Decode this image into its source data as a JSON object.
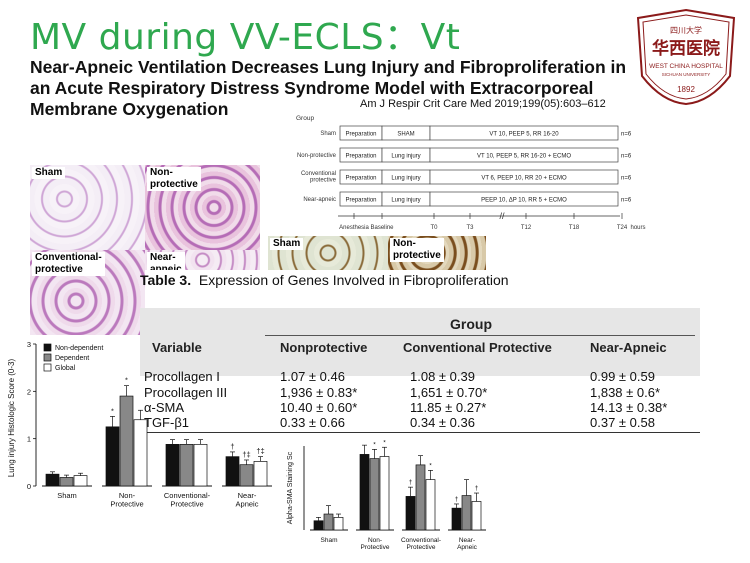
{
  "slide_title": "MV during VV-ECLS：Vt",
  "paper_title": "Near-Apneic Ventilation Decreases Lung Injury and Fibroproliferation in an Acute Respiratory Distress Syndrome Model with Extracorporeal Membrane Oxygenation",
  "citation": "Am J Respir Crit Care Med 2019;199(05):603–612",
  "logo": {
    "text_cn": "华西医院",
    "text_en": "WEST CHINA HOSPITAL",
    "subtitle": "SICHUAN UNIVERSITY",
    "year": "1892",
    "small_cn": "四川大学"
  },
  "histology_panels": {
    "sham": "Sham",
    "nonprotective": "Non-\nprotective",
    "conventional": "Conventional-\nprotective",
    "near_apneic": "Near-\napneic"
  },
  "alpha_sma_panels": {
    "sham": "Sham",
    "nonprotective": "Non-\nprotective"
  },
  "protocol": {
    "group_header": "Group",
    "rows": [
      {
        "group": "Sham",
        "prep": "Preparation",
        "injury": "SHAM",
        "vent": "VT 10, PEEP 5, RR 16-20",
        "n": "n=6"
      },
      {
        "group": "Non-protective",
        "prep": "Preparation",
        "injury": "Lung injury",
        "vent": "VT 10, PEEP 5, RR 16-20 + ECMO",
        "n": "n=6"
      },
      {
        "group": "Conventional protective",
        "prep": "Preparation",
        "injury": "Lung injury",
        "vent": "VT 6, PEEP 10, RR 20 + ECMO",
        "n": "n=6"
      },
      {
        "group": "Near-apneic",
        "prep": "Preparation",
        "injury": "Lung injury",
        "vent": "PEEP 10, ΔP 10, RR 5 + ECMO",
        "n": "n=6"
      }
    ],
    "timeline": [
      "Anesthesia",
      "Baseline",
      "T0",
      "T3",
      "T12",
      "T18",
      "T24",
      "hours"
    ]
  },
  "table3": {
    "caption_bold": "Table 3.",
    "caption": "Expression of Genes Involved in Fibroproliferation",
    "group_header": "Group",
    "columns": [
      "Variable",
      "Nonprotective",
      "Conventional Protective",
      "Near-Apneic"
    ],
    "rows": [
      [
        "Procollagen I",
        "1.07 ± 0.46",
        "1.08 ± 0.39",
        "0.99 ± 0.59"
      ],
      [
        "Procollagen III",
        "1,936 ± 0.83*",
        "1,651 ± 0.70*",
        "1,838 ± 0.6*"
      ],
      [
        "α-SMA",
        "10.40 ± 0.60*",
        "11.85 ± 0.27*",
        "14.13 ± 0.38*"
      ],
      [
        "TGF-β1",
        "0.33 ± 0.66",
        "0.34 ± 0.36",
        "0.37 ± 0.58"
      ]
    ]
  },
  "chart_data": [
    {
      "type": "bar",
      "ylabel": "Lung injury Histologic Score (0-3)",
      "ylim": [
        0,
        3
      ],
      "yticks": [
        "0",
        "1",
        "2",
        "3"
      ],
      "categories": [
        "Sham",
        "Non-\nProtective",
        "Conventional-\nProtective",
        "Near-\nApneic"
      ],
      "legend": {
        "placement": "top-left"
      },
      "series": [
        {
          "name": "Non-dependent",
          "color": "#111111",
          "values": [
            0.25,
            1.25,
            0.88,
            0.62
          ],
          "err": [
            0.05,
            0.22,
            0.1,
            0.1
          ],
          "marks": [
            "",
            "*",
            "",
            "†"
          ]
        },
        {
          "name": "Dependent",
          "color": "#888888",
          "values": [
            0.18,
            1.9,
            0.88,
            0.45
          ],
          "err": [
            0.05,
            0.22,
            0.1,
            0.1
          ],
          "marks": [
            "",
            "*",
            "",
            "†‡"
          ]
        },
        {
          "name": "Global",
          "color": "#ffffff",
          "values": [
            0.22,
            1.4,
            0.88,
            0.52
          ],
          "err": [
            0.05,
            0.2,
            0.1,
            0.1
          ],
          "marks": [
            "",
            "",
            "",
            "†‡"
          ]
        }
      ]
    },
    {
      "type": "bar",
      "ylabel": "Alpha-SMA Staining Sc",
      "ylim": [
        0,
        2
      ],
      "categories": [
        "Sham",
        "Non-\nProtective",
        "Conventional-\nProtective",
        "Near-\nApneic"
      ],
      "series": [
        {
          "color": "#111111",
          "values": [
            0.22,
            1.8,
            0.8,
            0.52
          ],
          "err": [
            0.08,
            0.22,
            0.22,
            0.1
          ],
          "marks": [
            "",
            "",
            "†",
            "†"
          ]
        },
        {
          "color": "#888888",
          "values": [
            0.38,
            1.7,
            1.55,
            0.82
          ],
          "err": [
            0.2,
            0.22,
            0.22,
            0.38
          ],
          "marks": [
            "",
            "*",
            "",
            ""
          ]
        },
        {
          "color": "#ffffff",
          "values": [
            0.3,
            1.75,
            1.2,
            0.68
          ],
          "err": [
            0.08,
            0.22,
            0.22,
            0.2
          ],
          "marks": [
            "",
            "*",
            "*",
            "†"
          ]
        }
      ]
    }
  ]
}
